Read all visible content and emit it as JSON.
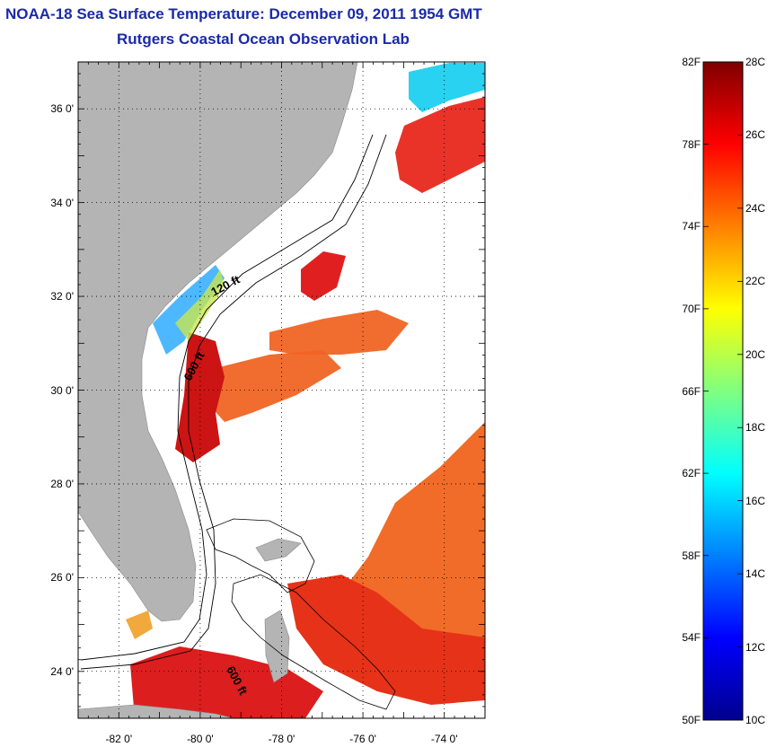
{
  "title": {
    "line1": "NOAA-18 Sea Surface Temperature:  December 09, 2011 1954 GMT",
    "line2": "Rutgers Coastal Ocean Observation Lab"
  },
  "map": {
    "lat_ticks": [
      {
        "value": 36,
        "label": "36 0'"
      },
      {
        "value": 34,
        "label": "34 0'"
      },
      {
        "value": 32,
        "label": "32 0'"
      },
      {
        "value": 30,
        "label": "30 0'"
      },
      {
        "value": 28,
        "label": "28 0'"
      },
      {
        "value": 26,
        "label": "26 0'"
      },
      {
        "value": 24,
        "label": "24 0'"
      }
    ],
    "lon_ticks": [
      {
        "value": -82,
        "label": "-82 0'"
      },
      {
        "value": -80,
        "label": "-80 0'"
      },
      {
        "value": -78,
        "label": "-78 0'"
      },
      {
        "value": -76,
        "label": "-76 0'"
      },
      {
        "value": -74,
        "label": "-74 0'"
      }
    ],
    "lat_range": [
      23,
      37
    ],
    "lon_range": [
      -83,
      -73
    ],
    "contour_labels": [
      "120 ft",
      "600 ft",
      "600 ft"
    ],
    "land_color": "#b4b4b4",
    "gridlines": "dotted"
  },
  "colorbar": {
    "f_labels": [
      "82F",
      "78F",
      "74F",
      "70F",
      "66F",
      "62F",
      "58F",
      "54F",
      "50F"
    ],
    "c_labels": [
      "28C",
      "26C",
      "24C",
      "22C",
      "20C",
      "18C",
      "16C",
      "14C",
      "12C",
      "10C"
    ],
    "f_range": [
      50,
      82
    ],
    "c_range": [
      10,
      28
    ],
    "colors": [
      "#00008f",
      "#0000ff",
      "#0080ff",
      "#00ffff",
      "#80ff80",
      "#ffff00",
      "#ff8000",
      "#ff0000",
      "#800000"
    ]
  }
}
